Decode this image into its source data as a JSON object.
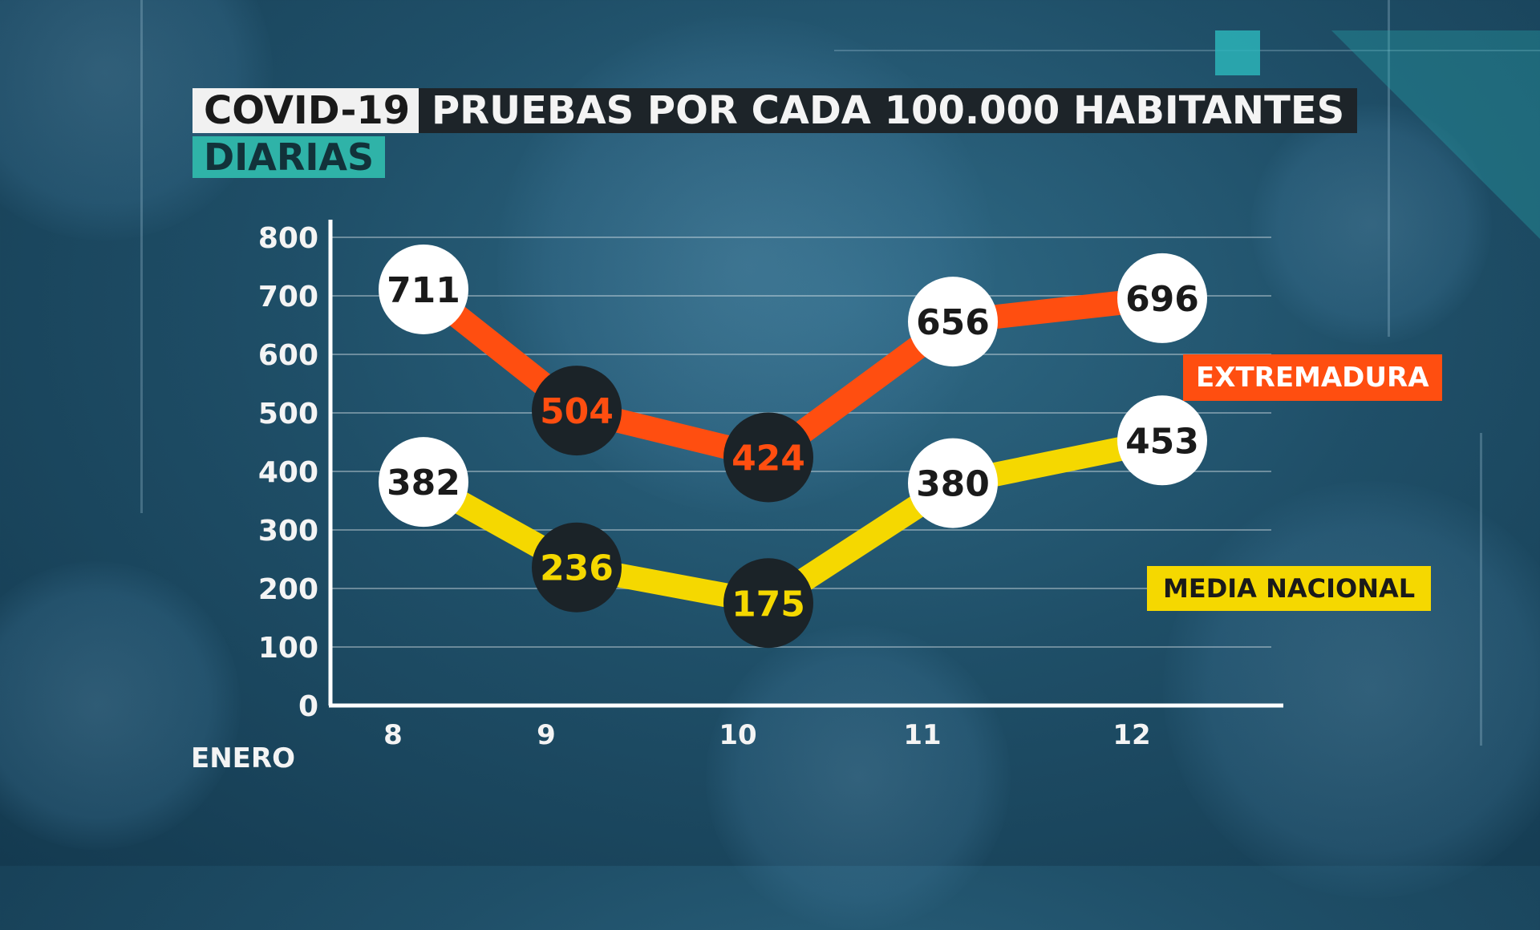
{
  "header": {
    "tag": "COVID-19",
    "title": "PRUEBAS POR CADA 100.000 HABITANTES",
    "subtitle": "DIARIAS"
  },
  "colors": {
    "extremadura": "#ff4e10",
    "nacional": "#f5d800",
    "marker_dark": "#1b2328",
    "marker_light": "#ffffff",
    "label_dark": "#1a1a1a"
  },
  "chart_data": {
    "type": "line",
    "title": "PRUEBAS POR CADA 100.000 HABITANTES",
    "x": [
      "8",
      "9",
      "10",
      "11",
      "12"
    ],
    "x_unit_label": "ENERO",
    "ylim": [
      0,
      800
    ],
    "yticks": [
      0,
      100,
      200,
      300,
      400,
      500,
      600,
      700,
      800
    ],
    "grid": true,
    "series": [
      {
        "name": "EXTREMADURA",
        "values": [
          711,
          504,
          424,
          656,
          696
        ],
        "marker_styles": [
          "light",
          "dark",
          "dark",
          "light",
          "light"
        ]
      },
      {
        "name": "MEDIA NACIONAL",
        "values": [
          382,
          236,
          175,
          380,
          453
        ],
        "marker_styles": [
          "light",
          "dark",
          "dark",
          "light",
          "light"
        ]
      }
    ]
  }
}
